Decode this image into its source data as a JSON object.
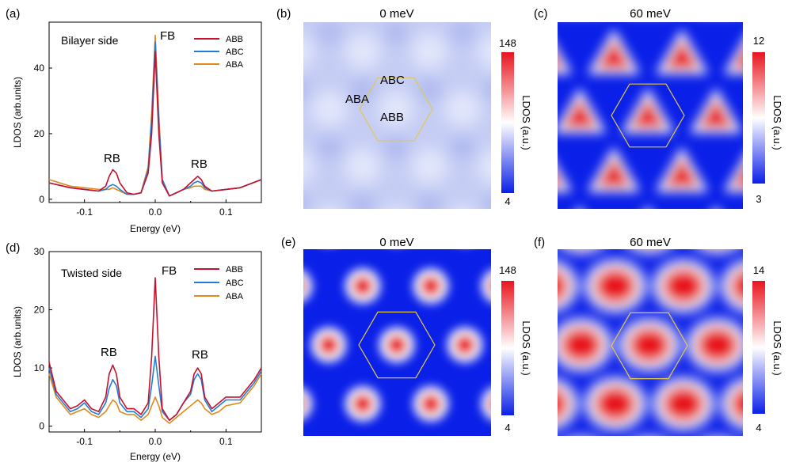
{
  "panels": {
    "a": {
      "label": "(a)",
      "side_label": "Bilayer side",
      "xlabel": "Energy (eV)",
      "ylabel": "LDOS (arb.units)",
      "xticks": [
        "-0.1",
        "0.0",
        "0.1"
      ],
      "yticks": [
        "0",
        "20",
        "40"
      ],
      "annotations": {
        "fb": "FB",
        "rb_left": "RB",
        "rb_right": "RB"
      }
    },
    "b": {
      "label": "(b)",
      "title": "0 meV",
      "cbar_max": "148",
      "cbar_min": "4",
      "cbar_label": "LDOS (a.u.)",
      "site_labels": {
        "abc": "ABC",
        "aba": "ABA",
        "abb": "ABB"
      }
    },
    "c": {
      "label": "(c)",
      "title": "60 meV",
      "cbar_max": "12",
      "cbar_min": "3",
      "cbar_label": "LDOS (a.u.)"
    },
    "d": {
      "label": "(d)",
      "side_label": "Twisted side",
      "xlabel": "Energy (eV)",
      "ylabel": "LDOS (arb.units)",
      "xticks": [
        "-0.1",
        "0.0",
        "0.1"
      ],
      "yticks": [
        "0",
        "10",
        "20",
        "30"
      ],
      "annotations": {
        "fb": "FB",
        "rb_left": "RB",
        "rb_right": "RB"
      }
    },
    "e": {
      "label": "(e)",
      "title": "0 meV",
      "cbar_max": "148",
      "cbar_min": "4",
      "cbar_label": "LDOS (a.u.)"
    },
    "f": {
      "label": "(f)",
      "title": "60 meV",
      "cbar_max": "14",
      "cbar_min": "4",
      "cbar_label": "LDOS (a.u.)"
    }
  },
  "colors": {
    "ABB": "#c8102e",
    "ABC": "#1f7fd6",
    "ABA": "#e08a1e",
    "map_low": "#0a1fe8",
    "map_high": "#e8141e",
    "hexagon": "#e3c84a"
  },
  "chart_data": [
    {
      "type": "line",
      "panel": "a",
      "xlabel": "Energy (eV)",
      "ylabel": "LDOS (arb.units)",
      "xlim": [
        -0.15,
        0.15
      ],
      "ylim": [
        -1,
        54
      ],
      "legend": "top-right",
      "x": [
        -0.15,
        -0.12,
        -0.1,
        -0.08,
        -0.07,
        -0.065,
        -0.06,
        -0.055,
        -0.05,
        -0.04,
        -0.03,
        -0.02,
        -0.01,
        -0.005,
        0.0,
        0.005,
        0.01,
        0.02,
        0.03,
        0.04,
        0.05,
        0.055,
        0.06,
        0.065,
        0.07,
        0.08,
        0.1,
        0.12,
        0.15
      ],
      "series": [
        {
          "name": "ABB",
          "values": [
            5,
            3.5,
            3,
            2.5,
            4,
            7,
            9,
            8,
            5,
            2,
            1.5,
            2,
            8,
            20,
            45,
            20,
            5,
            1,
            2,
            3,
            5,
            6,
            7,
            6,
            4,
            2.5,
            3,
            3.5,
            6
          ]
        },
        {
          "name": "ABC",
          "values": [
            5,
            3.5,
            3,
            2.5,
            3,
            4,
            4.5,
            4,
            3,
            1.5,
            1.5,
            2,
            9,
            24,
            48,
            24,
            6,
            1,
            2,
            3,
            4,
            5,
            5.5,
            5,
            3.5,
            2.5,
            3,
            3.5,
            6
          ]
        },
        {
          "name": "ABA",
          "values": [
            6,
            4,
            3.5,
            3,
            3,
            3,
            3.5,
            3,
            2.5,
            1.5,
            1.5,
            2,
            10,
            26,
            50,
            26,
            6,
            1,
            2,
            3,
            3.5,
            4,
            4,
            4,
            3,
            2.5,
            3,
            3.5,
            6
          ]
        }
      ]
    },
    {
      "type": "line",
      "panel": "d",
      "xlabel": "Energy (eV)",
      "ylabel": "LDOS (arb.units)",
      "xlim": [
        -0.15,
        0.15
      ],
      "ylim": [
        -1,
        30
      ],
      "legend": "top-right",
      "x": [
        -0.15,
        -0.14,
        -0.12,
        -0.11,
        -0.1,
        -0.09,
        -0.08,
        -0.07,
        -0.065,
        -0.06,
        -0.055,
        -0.05,
        -0.04,
        -0.03,
        -0.02,
        -0.01,
        -0.005,
        0.0,
        0.005,
        0.01,
        0.02,
        0.03,
        0.04,
        0.05,
        0.055,
        0.06,
        0.065,
        0.07,
        0.08,
        0.09,
        0.1,
        0.12,
        0.14,
        0.15
      ],
      "series": [
        {
          "name": "ABB",
          "values": [
            11,
            6,
            3,
            3.5,
            4.5,
            3,
            2.5,
            5,
            9,
            10.5,
            9,
            5,
            3,
            3,
            2,
            4,
            12,
            25.5,
            12,
            3,
            1,
            2,
            4,
            6,
            9,
            10,
            9,
            5,
            3,
            4,
            5,
            5,
            8,
            10
          ]
        },
        {
          "name": "ABC",
          "values": [
            10,
            5.5,
            2.5,
            3,
            4,
            2.5,
            2,
            4,
            6.5,
            8,
            7,
            4,
            2.5,
            2.5,
            1.5,
            3,
            7,
            12,
            7,
            2.5,
            1,
            2,
            4,
            5.5,
            8,
            9,
            8,
            4.5,
            2.5,
            3.5,
            4.5,
            4.5,
            7.5,
            9.5
          ]
        },
        {
          "name": "ABA",
          "values": [
            9,
            5,
            2,
            2.5,
            3,
            2,
            1.5,
            2.5,
            3.5,
            4.5,
            4,
            2.5,
            2,
            2,
            1,
            2,
            3.5,
            5,
            3.5,
            1.5,
            0.5,
            1.5,
            2.5,
            3.5,
            4,
            4.5,
            4,
            3,
            2,
            2.5,
            3.5,
            4,
            7,
            9
          ]
        }
      ]
    },
    {
      "type": "heatmap",
      "panel": "b",
      "title": "0 meV",
      "colorbar_range": [
        4,
        148
      ],
      "colorbar_label": "LDOS (a.u.)"
    },
    {
      "type": "heatmap",
      "panel": "c",
      "title": "60 meV",
      "colorbar_range": [
        3,
        12
      ],
      "colorbar_label": "LDOS (a.u.)"
    },
    {
      "type": "heatmap",
      "panel": "e",
      "title": "0 meV",
      "colorbar_range": [
        4,
        148
      ],
      "colorbar_label": "LDOS (a.u.)"
    },
    {
      "type": "heatmap",
      "panel": "f",
      "title": "60 meV",
      "colorbar_range": [
        4,
        14
      ],
      "colorbar_label": "LDOS (a.u.)"
    }
  ]
}
